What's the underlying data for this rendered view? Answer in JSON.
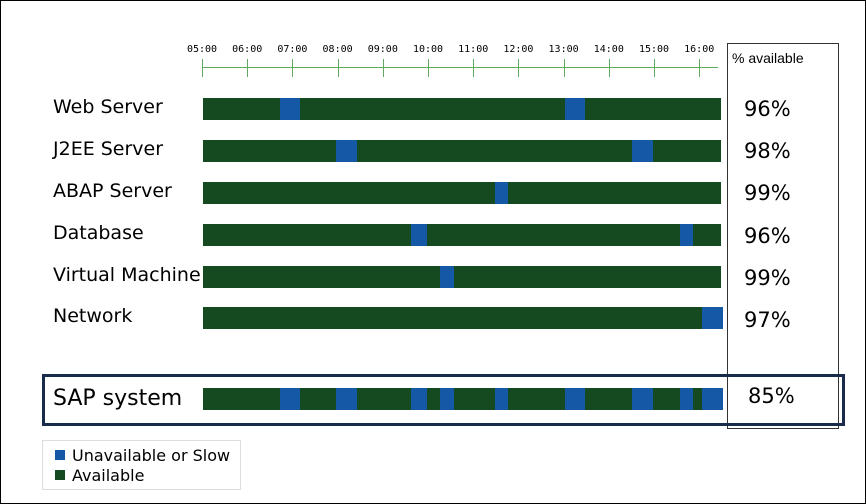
{
  "axis": {
    "hours": [
      "05:00",
      "06:00",
      "07:00",
      "08:00",
      "09:00",
      "10:00",
      "11:00",
      "12:00",
      "13:00",
      "14:00",
      "15:00",
      "16:00"
    ],
    "start_hour": 5,
    "end_hour": 16.5
  },
  "availability_header": "% available",
  "colors": {
    "available": "#154a20",
    "unavailable": "#1559a6"
  },
  "rows": [
    {
      "name": "Web Server",
      "percent": "96%",
      "outages": [
        [
          6.7,
          7.15
        ],
        [
          13.0,
          13.45
        ]
      ]
    },
    {
      "name": "J2EE Server",
      "percent": "98%",
      "outages": [
        [
          7.95,
          8.4
        ],
        [
          14.5,
          14.95
        ]
      ]
    },
    {
      "name": "ABAP Server",
      "percent": "99%",
      "outages": [
        [
          11.45,
          11.75
        ]
      ]
    },
    {
      "name": "Database",
      "percent": "96%",
      "outages": [
        [
          9.6,
          9.95
        ],
        [
          15.55,
          15.85
        ]
      ]
    },
    {
      "name": "Virtual Machine",
      "percent": "99%",
      "outages": [
        [
          10.25,
          10.55
        ]
      ]
    },
    {
      "name": "Network",
      "percent": "97%",
      "outages": [
        [
          16.05,
          16.5
        ]
      ]
    }
  ],
  "summary": {
    "name": "SAP system",
    "percent": "85%",
    "outages": [
      [
        6.7,
        7.15
      ],
      [
        7.95,
        8.4
      ],
      [
        9.6,
        9.95
      ],
      [
        10.25,
        10.55
      ],
      [
        11.45,
        11.75
      ],
      [
        13.0,
        13.45
      ],
      [
        14.5,
        14.95
      ],
      [
        15.55,
        15.85
      ],
      [
        16.05,
        16.5
      ]
    ]
  },
  "legend": {
    "unavailable_label": "Unavailable or Slow",
    "available_label": "Available"
  }
}
